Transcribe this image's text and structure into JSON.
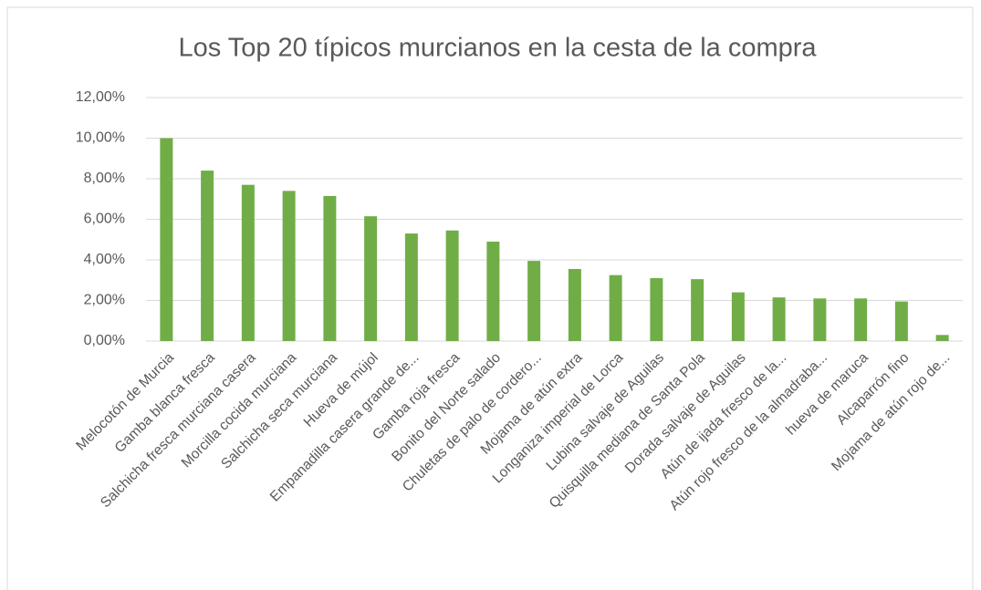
{
  "chart_data": {
    "type": "bar",
    "title": "Los Top 20 típicos murcianos en la cesta de la compra",
    "categories": [
      "Melocotón de Murcia",
      "Gamba blanca fresca",
      "Salchicha fresca murciana casera",
      "Morcilla cocida murciana",
      "Salchicha seca murciana",
      "Hueva de mújol",
      "Empanadilla casera grande de...",
      "Gamba roja fresca",
      "Bonito del Norte salado",
      "Chuletas de palo de cordero...",
      "Mojama de atún extra",
      "Longaniza imperial de Lorca",
      "Lubina salvaje de Aguilas",
      "Quisquilla mediana de Santa Pola",
      "Dorada salvaje de Aguilas",
      "Atún de ijada fresco de la...",
      "Atún rojo fresco de la almadraba...",
      "hueva de maruca",
      "Alcaparrón fino",
      "Mojama de atún rojo de..."
    ],
    "values": [
      10.0,
      8.4,
      7.7,
      7.4,
      7.15,
      6.15,
      5.3,
      5.45,
      4.9,
      3.95,
      3.55,
      3.25,
      3.1,
      3.05,
      2.4,
      2.15,
      2.1,
      2.1,
      1.95,
      0.3
    ],
    "color": "#70ad47",
    "ylim": [
      0,
      12
    ],
    "yticks": [
      {
        "value": 0,
        "label": "0,00%"
      },
      {
        "value": 2,
        "label": "2,00%"
      },
      {
        "value": 4,
        "label": "4,00%"
      },
      {
        "value": 6,
        "label": "6,00%"
      },
      {
        "value": 8,
        "label": "8,00%"
      },
      {
        "value": 10,
        "label": "10,00%"
      },
      {
        "value": 12,
        "label": "12,00%"
      }
    ],
    "grid": true
  }
}
